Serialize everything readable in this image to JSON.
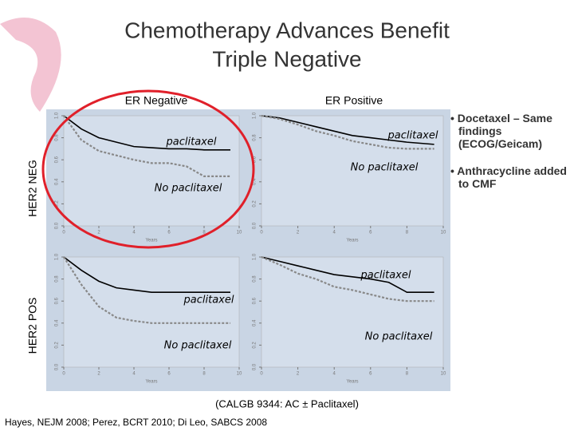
{
  "title_lines": [
    "Chemotherapy Advances Benefit",
    "Triple Negative"
  ],
  "column_headers": [
    "ER Negative",
    "ER Positive"
  ],
  "row_headers": [
    "HER2 NEG",
    "HER2 POS"
  ],
  "bullets": [
    "Docetaxel – Same findings (ECOG/Geicam)",
    "Anthracycline added to CMF"
  ],
  "caption": "(CALGB 9344:  AC ± Paclitaxel)",
  "citation": "Hayes, NEJM 2008; Perez, BCRT 2010; Di Leo, SABCS 2008",
  "chart_data": [
    {
      "type": "line",
      "xlabel": "Years",
      "x": [
        0,
        1,
        2,
        3,
        4,
        5,
        6,
        7,
        8,
        9.5
      ],
      "xlim": [
        0,
        10
      ],
      "xticks": [
        0,
        2,
        4,
        6,
        8,
        10
      ],
      "ylim": [
        0,
        1
      ],
      "yticks": [
        {
          "value": 0,
          "label": "0.0"
        },
        0.2,
        0.4,
        0.6,
        0.8,
        {
          "value": 1,
          "label": "1.0"
        }
      ],
      "series": [
        {
          "name": "paclitaxel",
          "color": "#000000",
          "dashed": false,
          "values": [
            1,
            0.88,
            0.8,
            0.76,
            0.72,
            0.71,
            0.7,
            0.7,
            0.69,
            0.69
          ]
        },
        {
          "name": "No paclitaxel",
          "color": "#888888",
          "dashed": true,
          "values": [
            1,
            0.78,
            0.68,
            0.64,
            0.6,
            0.57,
            0.57,
            0.54,
            0.45,
            0.45
          ]
        }
      ]
    },
    {
      "type": "line",
      "xlabel": "Years",
      "x": [
        0,
        1,
        2,
        3,
        4,
        5,
        6,
        7,
        8,
        9.5
      ],
      "xlim": [
        0,
        10
      ],
      "xticks": [
        0,
        2,
        4,
        6,
        8,
        10
      ],
      "ylim": [
        0,
        1
      ],
      "yticks": [
        {
          "value": 0,
          "label": "0.0"
        },
        0.2,
        0.4,
        0.6,
        0.8,
        {
          "value": 1,
          "label": "1.0"
        }
      ],
      "series": [
        {
          "name": "paclitaxel",
          "color": "#000000",
          "dashed": false,
          "values": [
            1,
            0.98,
            0.94,
            0.9,
            0.86,
            0.82,
            0.8,
            0.78,
            0.76,
            0.74
          ]
        },
        {
          "name": "No paclitaxel",
          "color": "#888888",
          "dashed": true,
          "values": [
            1,
            0.97,
            0.92,
            0.86,
            0.82,
            0.77,
            0.74,
            0.71,
            0.7,
            0.7
          ]
        }
      ]
    },
    {
      "type": "line",
      "xlabel": "Years",
      "x": [
        0,
        1,
        2,
        3,
        4,
        5,
        6,
        7,
        8,
        9.5
      ],
      "xlim": [
        0,
        10
      ],
      "xticks": [
        0,
        2,
        4,
        6,
        8,
        10
      ],
      "ylim": [
        0,
        1
      ],
      "yticks": [
        {
          "value": 0,
          "label": "0.0"
        },
        0.2,
        0.4,
        0.6,
        0.8,
        {
          "value": 1,
          "label": "1.0"
        }
      ],
      "series": [
        {
          "name": "paclitaxel",
          "color": "#000000",
          "dashed": false,
          "values": [
            1,
            0.88,
            0.78,
            0.72,
            0.7,
            0.68,
            0.68,
            0.68,
            0.68,
            0.68
          ]
        },
        {
          "name": "No paclitaxel",
          "color": "#888888",
          "dashed": true,
          "values": [
            1,
            0.75,
            0.55,
            0.45,
            0.42,
            0.4,
            0.4,
            0.4,
            0.4,
            0.4
          ]
        }
      ]
    },
    {
      "type": "line",
      "xlabel": "Years",
      "x": [
        0,
        1,
        2,
        3,
        4,
        5,
        6,
        7,
        8,
        9.5
      ],
      "xlim": [
        0,
        10
      ],
      "xticks": [
        0,
        2,
        4,
        6,
        8,
        10
      ],
      "ylim": [
        0,
        1
      ],
      "yticks": [
        {
          "value": 0,
          "label": "0.0"
        },
        0.2,
        0.4,
        0.6,
        0.8,
        {
          "value": 1,
          "label": "1.0"
        }
      ],
      "series": [
        {
          "name": "paclitaxel",
          "color": "#000000",
          "dashed": false,
          "values": [
            1,
            0.96,
            0.92,
            0.88,
            0.84,
            0.82,
            0.8,
            0.77,
            0.68,
            0.68
          ]
        },
        {
          "name": "No paclitaxel",
          "color": "#888888",
          "dashed": true,
          "values": [
            1,
            0.93,
            0.85,
            0.8,
            0.73,
            0.7,
            0.66,
            0.62,
            0.6,
            0.6
          ]
        }
      ]
    }
  ]
}
